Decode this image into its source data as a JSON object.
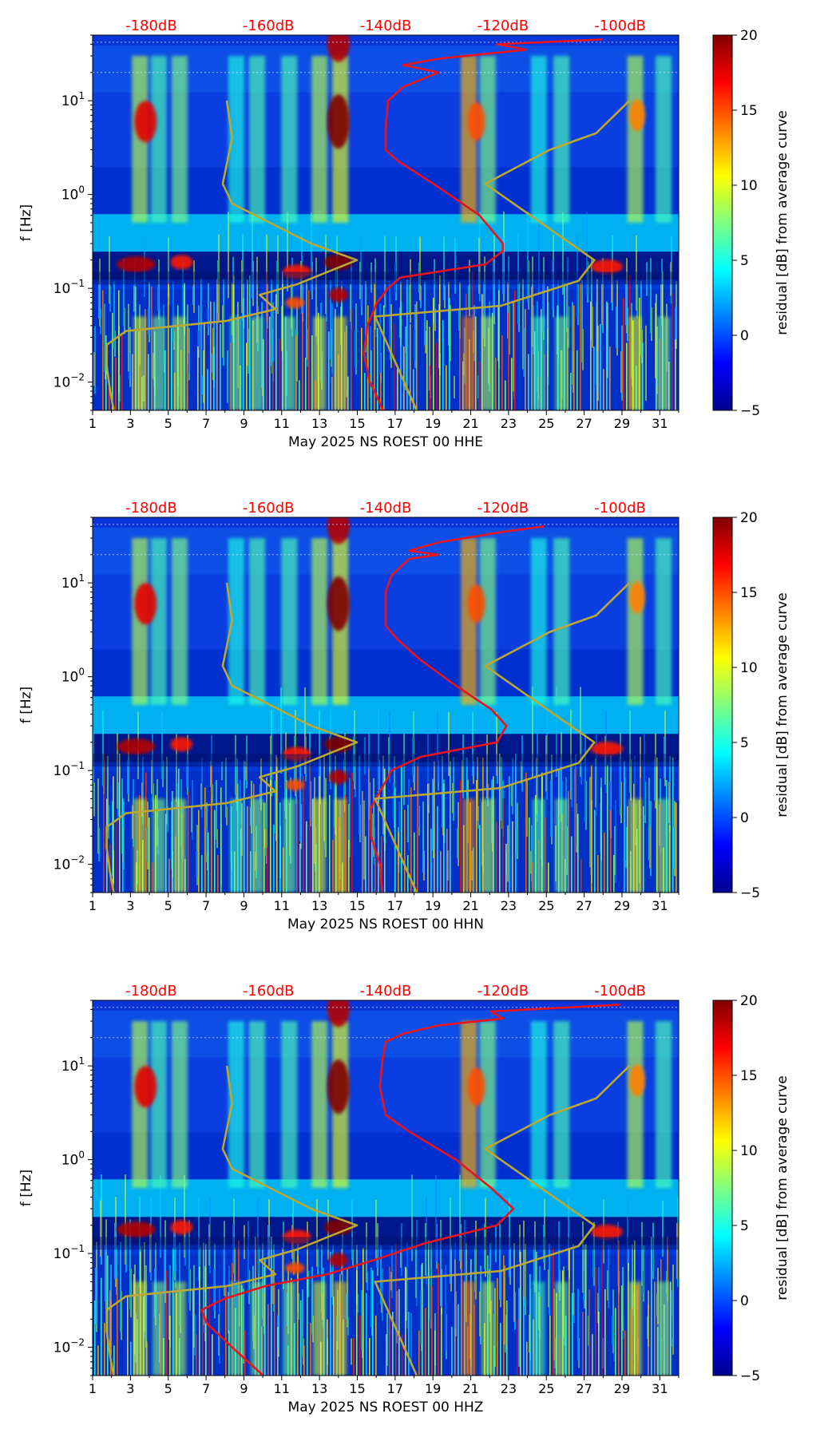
{
  "colors": {
    "dB_axis_labels": "#ff0000",
    "average_curve": "#e8141e",
    "model_curves": "#bba832",
    "colormap": "jet"
  },
  "chart_data": [
    {
      "type": "heatmap",
      "xlabel": "May 2025 NS ROEST 00 HHE",
      "ylabel": "f [Hz]",
      "x_ticks": [
        "1",
        "3",
        "5",
        "7",
        "9",
        "11",
        "13",
        "15",
        "17",
        "19",
        "21",
        "23",
        "25",
        "27",
        "29",
        "31"
      ],
      "x_range": [
        1,
        32
      ],
      "y_scale": "log",
      "y_range_hz": [
        0.005,
        50
      ],
      "y_tick_labels": [
        "10^-2",
        "10^-1",
        "10^0",
        "10^1"
      ],
      "top_axis_labels": [
        "-180dB",
        "-160dB",
        "-140dB",
        "-120dB",
        "-100dB"
      ],
      "top_axis_db_range": [
        -190,
        -90
      ],
      "colorbar": {
        "label": "residual [dB] from average curve",
        "range": [
          -5,
          20
        ],
        "ticks": [
          "-5",
          "0",
          "5",
          "10",
          "15",
          "20"
        ]
      },
      "series": [
        {
          "kind": "average_psd",
          "points": [
            [
              -140.4,
              0.005
            ],
            [
              -142.7,
              0.01
            ],
            [
              -143.7,
              0.02
            ],
            [
              -143.1,
              0.04
            ],
            [
              -141.5,
              0.07
            ],
            [
              -139.6,
              0.1
            ],
            [
              -137.5,
              0.13
            ],
            [
              -123,
              0.18
            ],
            [
              -120,
              0.25
            ],
            [
              -120,
              0.3
            ],
            [
              -124,
              0.6
            ],
            [
              -131,
              1.2
            ],
            [
              -138,
              2.3
            ],
            [
              -140,
              3
            ],
            [
              -140,
              5
            ],
            [
              -139.6,
              10
            ],
            [
              -137,
              14
            ],
            [
              -131,
              20
            ],
            [
              -137,
              24
            ],
            [
              -131,
              28
            ],
            [
              -116,
              35
            ],
            [
              -121,
              40
            ],
            [
              -103,
              45
            ]
          ]
        },
        {
          "kind": "model_low",
          "points": [
            [
              -186.4,
              0.005
            ],
            [
              -187,
              0.008
            ],
            [
              -187.6,
              0.015
            ],
            [
              -187.6,
              0.025
            ],
            [
              -184.3,
              0.035
            ],
            [
              -167.1,
              0.045
            ],
            [
              -158.8,
              0.06
            ],
            [
              -161.5,
              0.085
            ],
            [
              -155.2,
              0.11
            ],
            [
              -144.9,
              0.2
            ],
            [
              -152.7,
              0.3
            ],
            [
              -166.2,
              0.8
            ],
            [
              -167.8,
              1.3
            ],
            [
              -166.2,
              4
            ],
            [
              -167.1,
              10
            ]
          ]
        },
        {
          "kind": "model_high",
          "points": [
            [
              -134.7,
              0.005
            ],
            [
              -141.8,
              0.05
            ],
            [
              -120.4,
              0.065
            ],
            [
              -107.1,
              0.12
            ],
            [
              -104.4,
              0.2
            ],
            [
              -123,
              1.3
            ],
            [
              -112,
              3
            ],
            [
              -104.1,
              4.5
            ],
            [
              -98.4,
              10
            ]
          ]
        }
      ]
    },
    {
      "type": "heatmap",
      "xlabel": "May 2025 NS ROEST 00 HHN",
      "ylabel": "f [Hz]",
      "x_ticks": [
        "1",
        "3",
        "5",
        "7",
        "9",
        "11",
        "13",
        "15",
        "17",
        "19",
        "21",
        "23",
        "25",
        "27",
        "29",
        "31"
      ],
      "x_range": [
        1,
        32
      ],
      "y_scale": "log",
      "y_range_hz": [
        0.005,
        50
      ],
      "y_tick_labels": [
        "10^-2",
        "10^-1",
        "10^0",
        "10^1"
      ],
      "top_axis_labels": [
        "-180dB",
        "-160dB",
        "-140dB",
        "-120dB",
        "-100dB"
      ],
      "top_axis_db_range": [
        -190,
        -90
      ],
      "colorbar": {
        "label": "residual [dB] from average curve",
        "range": [
          -5,
          20
        ],
        "ticks": [
          "-5",
          "0",
          "5",
          "10",
          "15",
          "20"
        ]
      },
      "series": [
        {
          "kind": "average_psd",
          "points": [
            [
              -140.6,
              0.005
            ],
            [
              -141,
              0.01
            ],
            [
              -142.5,
              0.02
            ],
            [
              -142.5,
              0.03
            ],
            [
              -142.5,
              0.04
            ],
            [
              -141,
              0.06
            ],
            [
              -139.8,
              0.08
            ],
            [
              -139,
              0.1
            ],
            [
              -134,
              0.14
            ],
            [
              -121,
              0.2
            ],
            [
              -119.4,
              0.3
            ],
            [
              -122,
              0.45
            ],
            [
              -128,
              0.8
            ],
            [
              -134,
              1.5
            ],
            [
              -138,
              2.5
            ],
            [
              -140,
              3.5
            ],
            [
              -140,
              8
            ],
            [
              -139,
              12
            ],
            [
              -136,
              18
            ],
            [
              -131,
              20
            ],
            [
              -136,
              22
            ],
            [
              -131,
              27
            ],
            [
              -120,
              35
            ],
            [
              -113,
              40
            ]
          ]
        },
        {
          "kind": "model_low",
          "points": [
            [
              -186.4,
              0.005
            ],
            [
              -187,
              0.008
            ],
            [
              -187.6,
              0.015
            ],
            [
              -187.6,
              0.025
            ],
            [
              -184.3,
              0.035
            ],
            [
              -167.1,
              0.045
            ],
            [
              -158.8,
              0.06
            ],
            [
              -161.5,
              0.085
            ],
            [
              -155.2,
              0.11
            ],
            [
              -144.9,
              0.2
            ],
            [
              -152.7,
              0.3
            ],
            [
              -166.2,
              0.8
            ],
            [
              -167.8,
              1.3
            ],
            [
              -166.2,
              4
            ],
            [
              -167.1,
              10
            ]
          ]
        },
        {
          "kind": "model_high",
          "points": [
            [
              -134.7,
              0.005
            ],
            [
              -141.8,
              0.05
            ],
            [
              -120.4,
              0.065
            ],
            [
              -107.1,
              0.12
            ],
            [
              -104.4,
              0.2
            ],
            [
              -123,
              1.3
            ],
            [
              -112,
              3
            ],
            [
              -104.1,
              4.5
            ],
            [
              -98.4,
              10
            ]
          ]
        }
      ]
    },
    {
      "type": "heatmap",
      "xlabel": "May 2025 NS ROEST 00 HHZ",
      "ylabel": "f [Hz]",
      "x_ticks": [
        "1",
        "3",
        "5",
        "7",
        "9",
        "11",
        "13",
        "15",
        "17",
        "19",
        "21",
        "23",
        "25",
        "27",
        "29",
        "31"
      ],
      "x_range": [
        1,
        32
      ],
      "y_scale": "log",
      "y_range_hz": [
        0.005,
        50
      ],
      "y_tick_labels": [
        "10^-2",
        "10^-1",
        "10^0",
        "10^1"
      ],
      "top_axis_labels": [
        "-180dB",
        "-160dB",
        "-140dB",
        "-120dB",
        "-100dB"
      ],
      "top_axis_db_range": [
        -190,
        -90
      ],
      "colorbar": {
        "label": "residual [dB] from average curve",
        "range": [
          -5,
          20
        ],
        "ticks": [
          "-5",
          "0",
          "5",
          "10",
          "15",
          "20"
        ]
      },
      "series": [
        {
          "kind": "average_psd",
          "points": [
            [
              -160.9,
              0.005
            ],
            [
              -166.2,
              0.01
            ],
            [
              -170.5,
              0.018
            ],
            [
              -171.4,
              0.025
            ],
            [
              -167.5,
              0.033
            ],
            [
              -160.5,
              0.045
            ],
            [
              -150,
              0.06
            ],
            [
              -142,
              0.085
            ],
            [
              -133,
              0.13
            ],
            [
              -121,
              0.2
            ],
            [
              -118.2,
              0.3
            ],
            [
              -122,
              0.5
            ],
            [
              -128,
              1
            ],
            [
              -136,
              2
            ],
            [
              -140,
              3
            ],
            [
              -141,
              6
            ],
            [
              -140.5,
              12
            ],
            [
              -140,
              18
            ],
            [
              -137,
              22
            ],
            [
              -131,
              27
            ],
            [
              -120,
              32
            ],
            [
              -122,
              38
            ],
            [
              -100,
              45
            ]
          ]
        },
        {
          "kind": "model_low",
          "points": [
            [
              -186.4,
              0.005
            ],
            [
              -187,
              0.008
            ],
            [
              -187.6,
              0.015
            ],
            [
              -187.6,
              0.025
            ],
            [
              -184.3,
              0.035
            ],
            [
              -167.1,
              0.045
            ],
            [
              -158.8,
              0.06
            ],
            [
              -161.5,
              0.085
            ],
            [
              -155.2,
              0.11
            ],
            [
              -144.9,
              0.2
            ],
            [
              -152.7,
              0.3
            ],
            [
              -166.2,
              0.8
            ],
            [
              -167.8,
              1.3
            ],
            [
              -166.2,
              4
            ],
            [
              -167.1,
              10
            ]
          ]
        },
        {
          "kind": "model_high",
          "points": [
            [
              -134.7,
              0.005
            ],
            [
              -141.8,
              0.05
            ],
            [
              -120.4,
              0.065
            ],
            [
              -107.1,
              0.12
            ],
            [
              -104.4,
              0.2
            ],
            [
              -123,
              1.3
            ],
            [
              -112,
              3
            ],
            [
              -104.1,
              4.5
            ],
            [
              -98.4,
              10
            ]
          ]
        }
      ]
    }
  ]
}
